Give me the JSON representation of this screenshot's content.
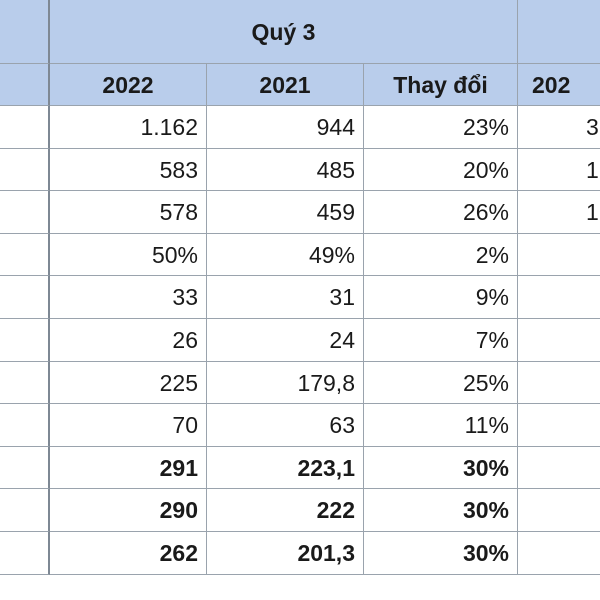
{
  "header": {
    "group_label": "Quý 3",
    "columns": [
      "2022",
      "2021",
      "Thay đổi",
      "202"
    ]
  },
  "rows": [
    {
      "values": [
        "1.162",
        "944",
        "23%",
        "3"
      ],
      "bold": false
    },
    {
      "values": [
        "583",
        "485",
        "20%",
        "1"
      ],
      "bold": false
    },
    {
      "values": [
        "578",
        "459",
        "26%",
        "1"
      ],
      "bold": false
    },
    {
      "values": [
        "50%",
        "49%",
        "2%",
        ""
      ],
      "bold": false
    },
    {
      "values": [
        "33",
        "31",
        "9%",
        ""
      ],
      "bold": false
    },
    {
      "values": [
        "26",
        "24",
        "7%",
        ""
      ],
      "bold": false
    },
    {
      "values": [
        "225",
        "179,8",
        "25%",
        ""
      ],
      "bold": false
    },
    {
      "values": [
        "70",
        "63",
        "11%",
        ""
      ],
      "bold": false
    },
    {
      "values": [
        "291",
        "223,1",
        "30%",
        ""
      ],
      "bold": true
    },
    {
      "values": [
        "290",
        "222",
        "30%",
        ""
      ],
      "bold": true
    },
    {
      "values": [
        "262",
        "201,3",
        "30%",
        ""
      ],
      "bold": true
    }
  ],
  "colors": {
    "header_fill": "#b9cdeb",
    "grid_line": "#9aa3ad",
    "text": "#1a1a1a"
  }
}
